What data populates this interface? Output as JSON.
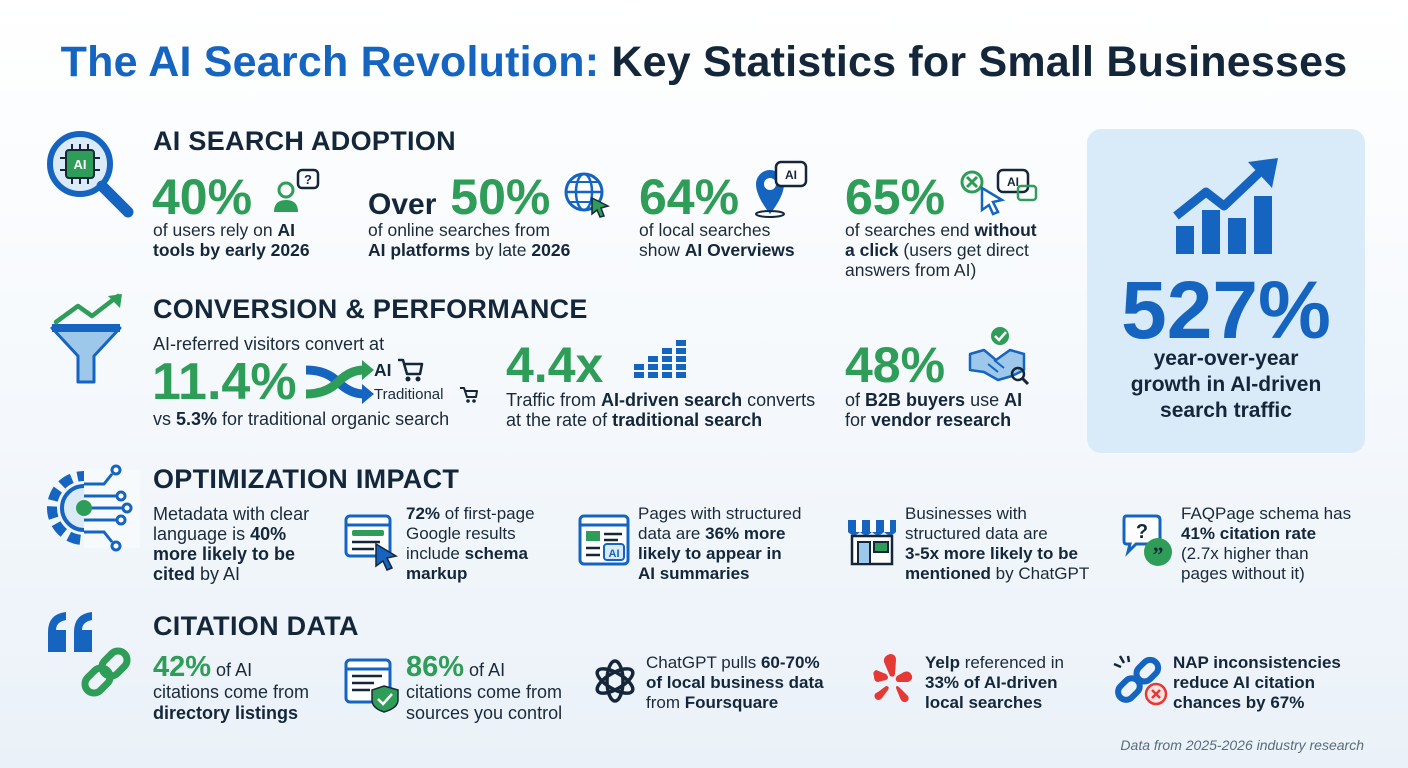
{
  "title": {
    "part1": "The AI Search Revolution:",
    "part2": "Key Statistics for Small Businesses"
  },
  "colors": {
    "blue": "#1565c0",
    "green": "#2e9d57",
    "dark": "#14273a",
    "panel": "#d9eaf8",
    "red": "#e53935"
  },
  "adoption": {
    "heading": "AI SEARCH ADOPTION",
    "stat1": {
      "value": "40%",
      "l1a": "of users rely on ",
      "l1b": "AI",
      "l2": "tools by early 2026"
    },
    "stat2": {
      "prefix": "Over",
      "value": "50%",
      "l1": "of online searches from",
      "l2a": "AI platforms",
      "l2b": " by late ",
      "l2c": "2026"
    },
    "stat3": {
      "value": "64%",
      "l1": "of local searches",
      "l2a": "show ",
      "l2b": "AI Overviews"
    },
    "stat4": {
      "value": "65%",
      "l1a": "of searches end ",
      "l1b": "without",
      "l2a": "a click",
      "l2b": " (users get direct",
      "l3": "answers from AI)"
    },
    "icon_label": "AI"
  },
  "conversion": {
    "heading": "CONVERSION & PERFORMANCE",
    "stat1": {
      "intro": "AI-referred visitors convert at",
      "value": "11.4%",
      "ai_label": "AI",
      "trad_label": "Traditional",
      "l_a": "vs ",
      "l_b": "5.3%",
      "l_c": " for traditional organic search"
    },
    "stat2": {
      "value": "4.4x",
      "l1a": "Traffic from ",
      "l1b": "AI-driven search",
      "l1c": " converts",
      "l2a": "at the rate of ",
      "l2b": "traditional search"
    },
    "stat3": {
      "value": "48%",
      "l1a": "of ",
      "l1b": "B2B buyers",
      "l1c": " use ",
      "l1d": "AI",
      "l2a": "for ",
      "l2b": "vendor research"
    }
  },
  "panel": {
    "value": "527%",
    "l1": "year-over-year",
    "l2": "growth in AI-driven",
    "l3": "search traffic"
  },
  "optimization": {
    "heading": "OPTIMIZATION IMPACT",
    "item1": {
      "l1": "Metadata with clear",
      "l2a": "language is ",
      "l2b": "40%",
      "l3": "more likely to be",
      "l4a": "cited",
      "l4b": " by AI"
    },
    "item2": {
      "l1a": "72%",
      "l1b": " of first-page",
      "l2": "Google results",
      "l3a": "include ",
      "l3b": "schema",
      "l4": "markup"
    },
    "item3": {
      "l1": "Pages with structured",
      "l2a": "data are ",
      "l2b": "36% more",
      "l3": "likely to appear in",
      "l4": "AI summaries",
      "icon_label": "AI"
    },
    "item4": {
      "l1": "Businesses with",
      "l2": "structured data are",
      "l3": "3-5x more likely to be",
      "l4a": "mentioned",
      "l4b": " by ChatGPT"
    },
    "item5": {
      "l1": "FAQPage schema has",
      "l2": "41% citation rate",
      "l3": "(2.7x higher than",
      "l4": "pages without it)",
      "icon_label": "?"
    }
  },
  "citation": {
    "heading": "CITATION DATA",
    "item1": {
      "value": "42%",
      "l1": " of AI",
      "l2": "citations come from",
      "l3": "directory listings"
    },
    "item2": {
      "value": "86%",
      "l1": " of AI",
      "l2": "citations come from",
      "l3": "sources you control"
    },
    "item3": {
      "l1a": "ChatGPT pulls ",
      "l1b": "60-70%",
      "l2": "of local business data",
      "l3a": "from ",
      "l3b": "Foursquare"
    },
    "item4": {
      "l1a": "Yelp",
      "l1b": " referenced in",
      "l2": "33% of AI-driven",
      "l3": "local searches"
    },
    "item5": {
      "l1": "NAP inconsistencies",
      "l2": "reduce AI citation",
      "l3": "chances by 67%"
    }
  },
  "footer": "Data from 2025-2026 industry research"
}
